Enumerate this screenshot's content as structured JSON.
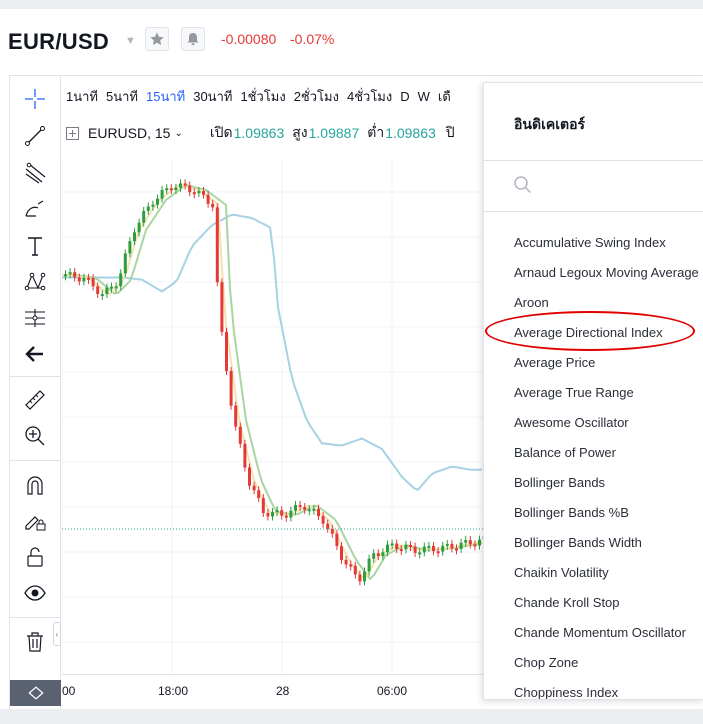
{
  "header": {
    "symbol": "EUR/USD",
    "change_abs": "-0.00080",
    "change_pct": "-0.07%"
  },
  "intervals": [
    "1นาที",
    "5นาที",
    "15นาที",
    "30นาที",
    "1ชั่วโมง",
    "2ชั่วโมง",
    "4ชั่วโมง",
    "D",
    "W",
    "เดื"
  ],
  "active_interval": "15นาที",
  "legend": {
    "symbol": "EURUSD, 15",
    "open_label": "เปิด",
    "open_value": "1.09863",
    "high_label": "สูง",
    "high_value": "1.09887",
    "low_label": "ต่ำ",
    "low_value": "1.09863",
    "close_label": "ปิ"
  },
  "time_axis": [
    "00",
    "18:00",
    "28",
    "06:00"
  ],
  "indicator_panel": {
    "title": "อินดิเคเตอร์",
    "items": [
      "Accumulative Swing Index",
      "Arnaud Legoux Moving Average",
      "Aroon",
      "Average Directional Index",
      "Average Price",
      "Average True Range",
      "Awesome Oscillator",
      "Balance of Power",
      "Bollinger Bands",
      "Bollinger Bands %B",
      "Bollinger Bands Width",
      "Chaikin Volatility",
      "Chande Kroll Stop",
      "Chande Momentum Oscillator",
      "Chop Zone",
      "Choppiness Index"
    ],
    "highlighted_item": "Average Directional Index"
  },
  "colors": {
    "up": "#26a69a",
    "candle_up": "#2e9e3b",
    "candle_down": "#e53935",
    "active_tab": "#2962ff",
    "ma_fast": "#f2e3b0",
    "ma_mid": "#a9d6a0",
    "ma_slow": "#a6d2e3",
    "highlight_circle": "#e00000"
  },
  "toolbar_icons": [
    "crosshair-icon",
    "trend-line-icon",
    "fib-icon",
    "brush-icon",
    "text-icon",
    "pattern-icon",
    "forecast-icon",
    "back-arrow-icon",
    "ruler-icon",
    "zoom-in-icon",
    "magnet-icon",
    "lock-drawing-icon",
    "lock-icon",
    "eye-icon",
    "trash-icon"
  ]
}
